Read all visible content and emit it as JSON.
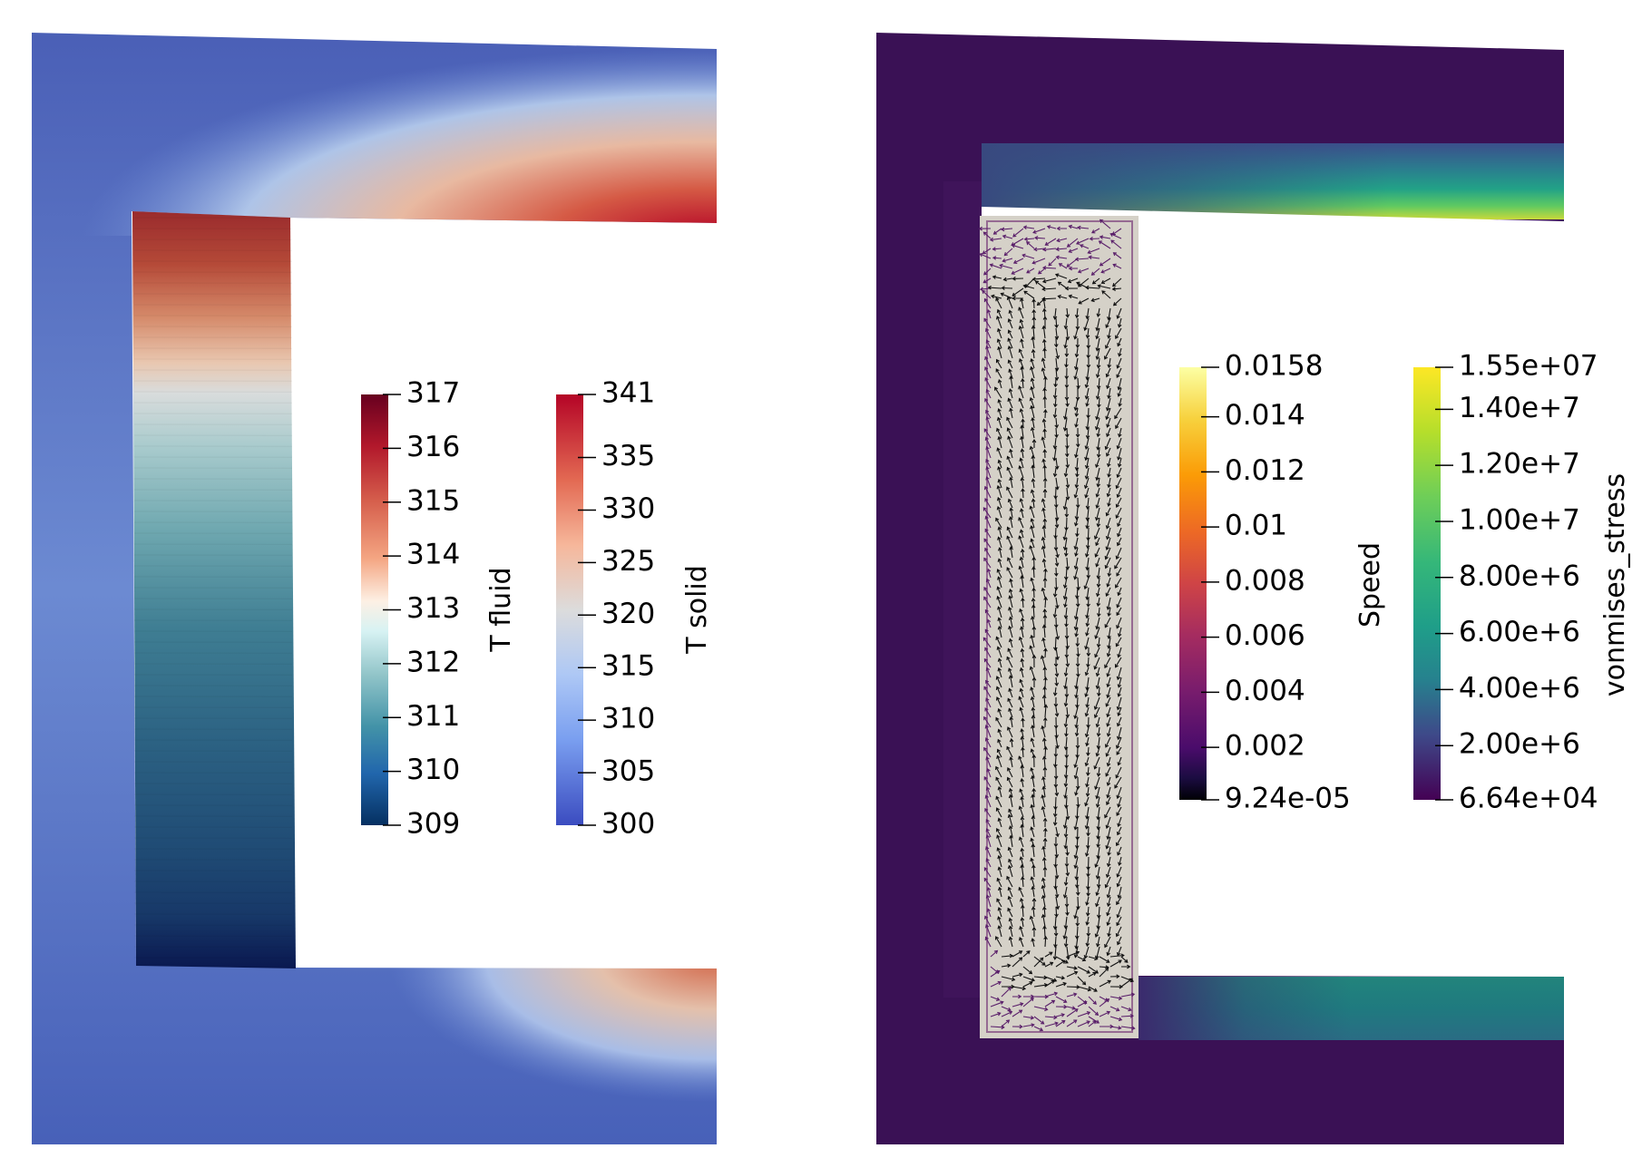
{
  "colorbars": [
    {
      "id": "t_fluid",
      "title": "T fluid",
      "colormap": "rdbu",
      "ticks": [
        {
          "value": 317,
          "label": "317"
        },
        {
          "value": 316,
          "label": "316"
        },
        {
          "value": 315,
          "label": "315"
        },
        {
          "value": 314,
          "label": "314"
        },
        {
          "value": 313,
          "label": "313"
        },
        {
          "value": 312,
          "label": "312"
        },
        {
          "value": 311,
          "label": "311"
        },
        {
          "value": 310,
          "label": "310"
        },
        {
          "value": 309,
          "label": "309"
        }
      ]
    },
    {
      "id": "t_solid",
      "title": "T solid",
      "colormap": "coolwarm",
      "ticks": [
        {
          "value": 341,
          "label": "341"
        },
        {
          "value": 335,
          "label": "335"
        },
        {
          "value": 330,
          "label": "330"
        },
        {
          "value": 325,
          "label": "325"
        },
        {
          "value": 320,
          "label": "320"
        },
        {
          "value": 315,
          "label": "315"
        },
        {
          "value": 310,
          "label": "310"
        },
        {
          "value": 305,
          "label": "305"
        },
        {
          "value": 300,
          "label": "300"
        }
      ]
    },
    {
      "id": "speed",
      "title": "Speed",
      "colormap": "inferno",
      "ticks": [
        {
          "value": 0.0158,
          "label": "0.0158"
        },
        {
          "value": 0.014,
          "label": "0.014"
        },
        {
          "value": 0.012,
          "label": "0.012"
        },
        {
          "value": 0.01,
          "label": "0.01"
        },
        {
          "value": 0.008,
          "label": "0.008"
        },
        {
          "value": 0.006,
          "label": "0.006"
        },
        {
          "value": 0.004,
          "label": "0.004"
        },
        {
          "value": 0.002,
          "label": "0.002"
        },
        {
          "value": 9.24e-05,
          "label": "9.24e-05"
        }
      ]
    },
    {
      "id": "vonmises_stress",
      "title": "vonmises_stress",
      "colormap": "viridis",
      "ticks": [
        {
          "value": 15500000,
          "label": "1.55e+07"
        },
        {
          "value": 14000000,
          "label": "1.40e+7"
        },
        {
          "value": 12000000,
          "label": "1.20e+7"
        },
        {
          "value": 10000000,
          "label": "1.00e+7"
        },
        {
          "value": 8000000,
          "label": "8.00e+6"
        },
        {
          "value": 6000000,
          "label": "6.00e+6"
        },
        {
          "value": 4000000,
          "label": "4.00e+6"
        },
        {
          "value": 2000000,
          "label": "2.00e+6"
        },
        {
          "value": 66400,
          "label": "6.64e+04"
        }
      ]
    }
  ],
  "colors": {
    "solid_cold": "#3b4cc0",
    "solid_hot": "#b40426",
    "fluid_cold": "#0a1850",
    "fluid_hot": "#67001f",
    "fluid_body_mid": "#2f6f86",
    "stress_low": "#440154",
    "stress_high": "#fde725",
    "fluid_region_grey": "#d5d1c8",
    "arrow_color": "#111111"
  }
}
